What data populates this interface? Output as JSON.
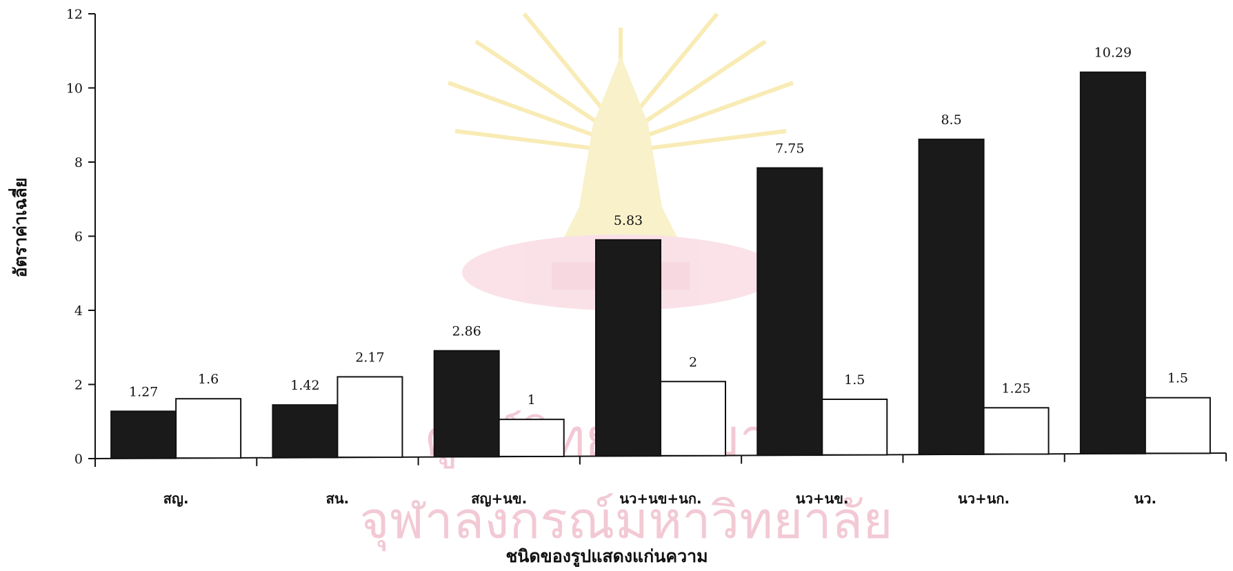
{
  "chart_data": {
    "type": "bar",
    "categories": [
      "สญ.",
      "สน.",
      "สญ+นข.",
      "นว+นข+นก.",
      "นว+นข.",
      "นว+นก.",
      "นว."
    ],
    "series": [
      {
        "color": "#1a1a1a",
        "values": [
          1.27,
          1.42,
          2.86,
          5.83,
          7.75,
          8.5,
          10.29
        ]
      },
      {
        "color": "#ffffff",
        "values": [
          1.6,
          2.17,
          1,
          2,
          1.5,
          1.25,
          1.5
        ]
      }
    ],
    "xlabel": "ชนิดของรูปแสดงแก่นความ",
    "ylabel": "อัตราค่าเฉลี่ย",
    "ylim": [
      0,
      12
    ],
    "yticks": [
      0,
      2,
      4,
      6,
      8,
      10,
      12
    ],
    "grid": false,
    "legend": "none"
  },
  "watermark": {
    "line1": "ศูนย์วิทยทรัพยากร",
    "line2": "จุฬาลงกรณ์มหาวิทยาลัย",
    "emblem": "phra-kiao-emblem"
  }
}
